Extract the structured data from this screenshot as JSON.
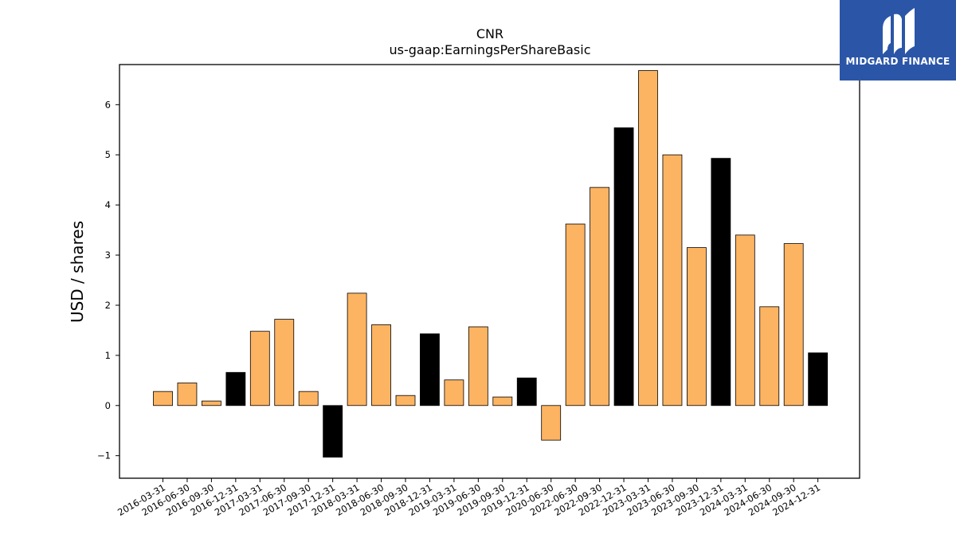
{
  "brand": {
    "name": "MIDGARD FINANCE",
    "color": "#2b56a8"
  },
  "chart_data": {
    "type": "bar",
    "title": "CNR",
    "subtitle": "us-gaap:EarningsPerShareBasic",
    "xlabel": "",
    "ylabel": "USD / shares",
    "ylim": [
      -1.45,
      6.8
    ],
    "yticks": [
      -1,
      0,
      1,
      2,
      3,
      4,
      5,
      6
    ],
    "grid": false,
    "colors": {
      "quarter": "#fdb462",
      "annual": "#000000",
      "edge": "#000000"
    },
    "categories": [
      "2016-03-31",
      "2016-06-30",
      "2016-09-30",
      "2016-12-31",
      "2017-03-31",
      "2017-06-30",
      "2017-09-30",
      "2017-12-31",
      "2018-03-31",
      "2018-06-30",
      "2018-09-30",
      "2018-12-31",
      "2019-03-31",
      "2019-06-30",
      "2019-09-30",
      "2019-12-31",
      "2020-06-30",
      "2022-06-30",
      "2022-09-30",
      "2022-12-31",
      "2023-03-31",
      "2023-06-30",
      "2023-09-30",
      "2023-12-31",
      "2024-03-31",
      "2024-06-30",
      "2024-09-30",
      "2024-12-31"
    ],
    "values": [
      0.28,
      0.45,
      0.09,
      0.66,
      1.48,
      1.72,
      0.28,
      -1.03,
      2.24,
      1.61,
      0.2,
      1.43,
      0.51,
      1.57,
      0.17,
      0.55,
      -0.69,
      3.62,
      4.35,
      5.54,
      6.68,
      5.0,
      3.15,
      4.93,
      3.4,
      1.97,
      3.23,
      1.05
    ],
    "annual": [
      false,
      false,
      false,
      true,
      false,
      false,
      false,
      true,
      false,
      false,
      false,
      true,
      false,
      false,
      false,
      true,
      false,
      false,
      false,
      true,
      false,
      false,
      false,
      true,
      false,
      false,
      false,
      true
    ]
  }
}
